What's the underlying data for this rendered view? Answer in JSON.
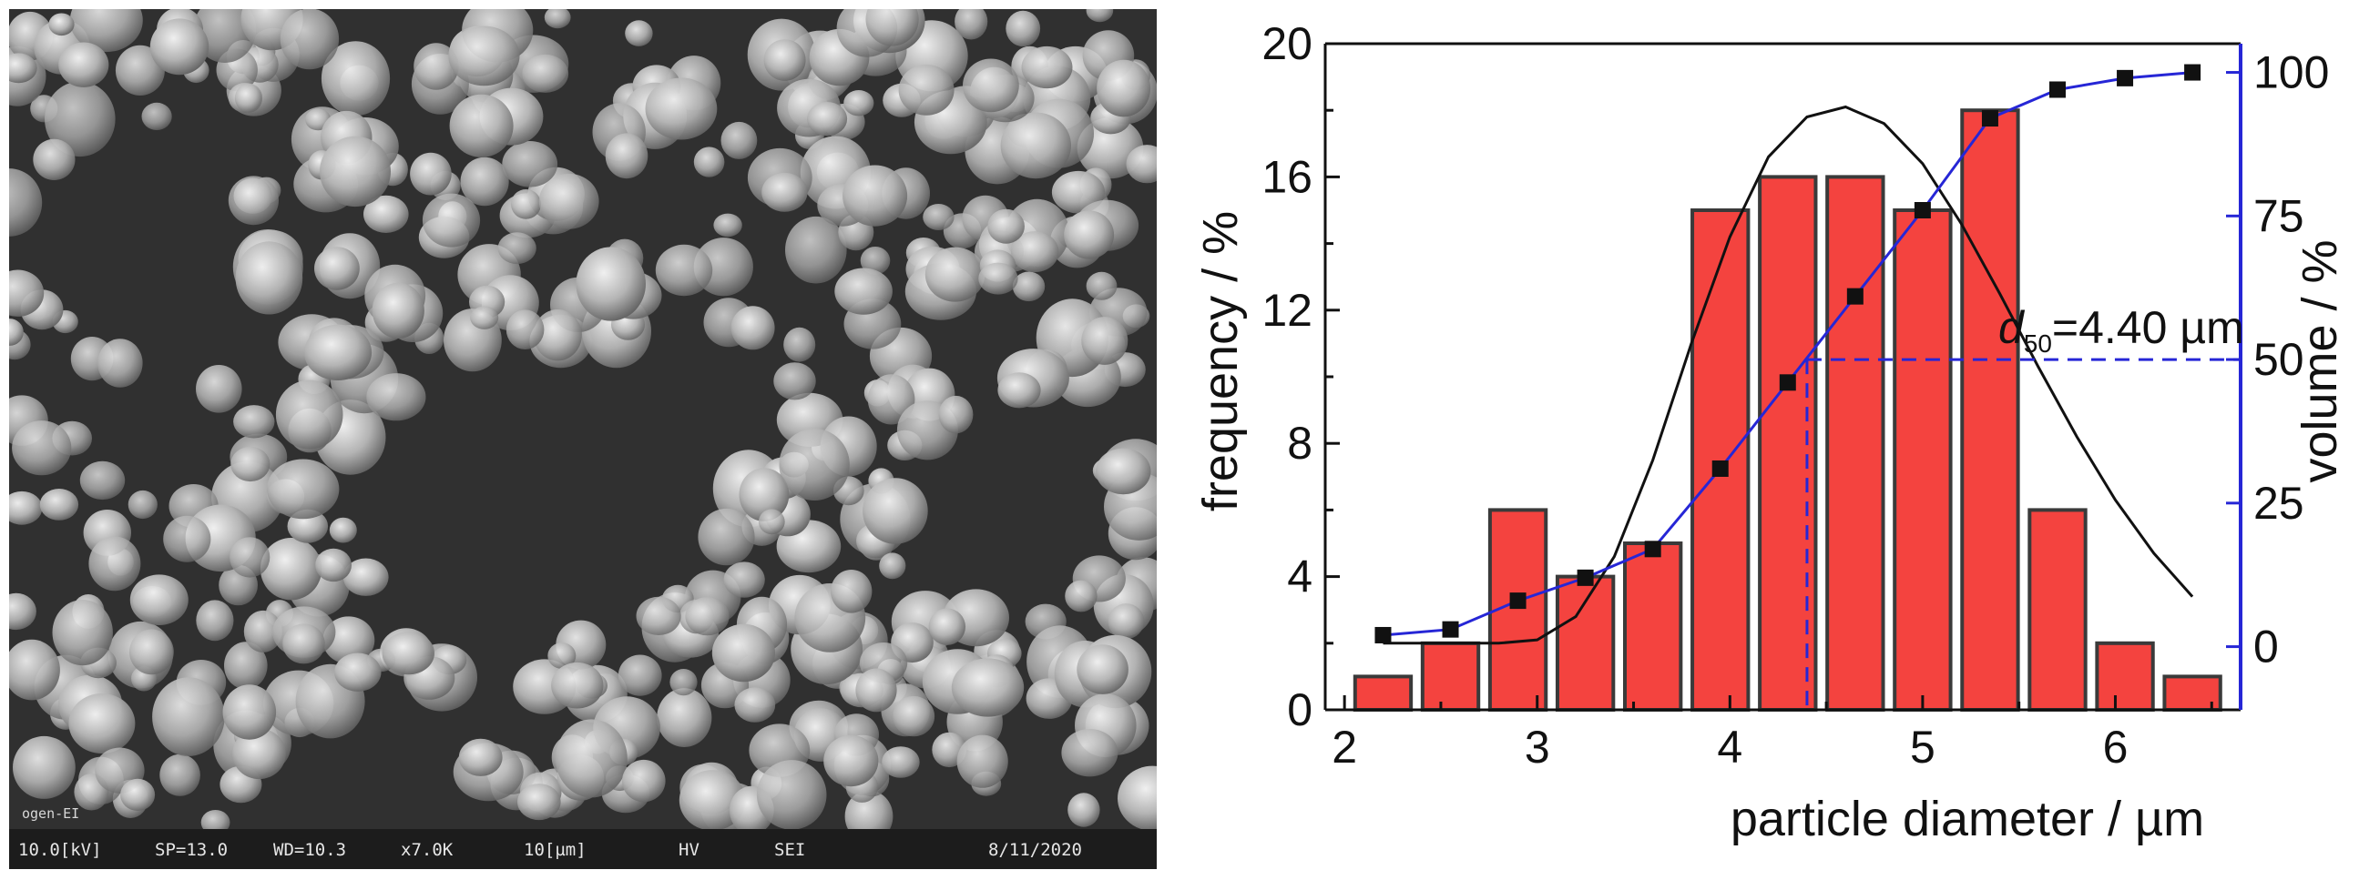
{
  "sem_image": {
    "info_bar": {
      "voltage": "10.0[kV]",
      "spot": "SP=13.0",
      "wd": "WD=10.3",
      "magnification": "x7.0K",
      "scale": "10[µm]",
      "mode1": "HV",
      "mode2": "SEI",
      "date": "8/11/2020"
    },
    "logo": "ogen-EI"
  },
  "chart_data": {
    "type": "bar",
    "xlabel": "particle diameter / µm",
    "ylabel_left": "frequency / %",
    "ylabel_right": "volume / %",
    "xlim": [
      1.9,
      6.65
    ],
    "ylim_left": [
      0,
      20
    ],
    "ylim_right": [
      -11,
      105
    ],
    "x_ticks": [
      2,
      3,
      4,
      5,
      6
    ],
    "y_ticks_left": [
      0,
      4,
      8,
      12,
      16,
      20
    ],
    "y_ticks_right": [
      0,
      25,
      50,
      75,
      100
    ],
    "bar_width": 0.29,
    "bars": {
      "x": [
        2.2,
        2.55,
        2.9,
        3.25,
        3.6,
        3.95,
        4.3,
        4.65,
        5.0,
        5.35,
        5.7,
        6.05,
        6.4
      ],
      "values": [
        1,
        2,
        6,
        4,
        5,
        15,
        16,
        16,
        15,
        18,
        6,
        2,
        1
      ],
      "color": "#f4433f"
    },
    "series": [
      {
        "type": "scatter-line",
        "axis": "right",
        "color": "#2626d6",
        "x": [
          2.2,
          2.55,
          2.9,
          3.25,
          3.6,
          3.95,
          4.3,
          4.65,
          5.0,
          5.35,
          5.7,
          6.05,
          6.4
        ],
        "values": [
          2,
          3,
          8,
          12,
          17,
          31,
          46,
          61,
          76,
          92,
          97,
          99,
          100
        ]
      },
      {
        "type": "line",
        "axis": "left",
        "color": "#111111",
        "x": [
          2.2,
          2.4,
          2.6,
          2.8,
          3.0,
          3.2,
          3.4,
          3.6,
          3.8,
          4.0,
          4.2,
          4.4,
          4.6,
          4.8,
          5.0,
          5.2,
          5.4,
          5.6,
          5.8,
          6.0,
          6.2,
          6.4
        ],
        "values": [
          2.0,
          2.0,
          2.0,
          2.0,
          2.1,
          2.8,
          4.6,
          7.5,
          11.0,
          14.2,
          16.6,
          17.8,
          18.1,
          17.6,
          16.4,
          14.6,
          12.5,
          10.3,
          8.2,
          6.3,
          4.7,
          3.4
        ]
      }
    ],
    "annotation": {
      "symbol": "d",
      "subscript": "50",
      "text": "=4.40 µm",
      "x": 4.4,
      "y_right": 50
    }
  }
}
